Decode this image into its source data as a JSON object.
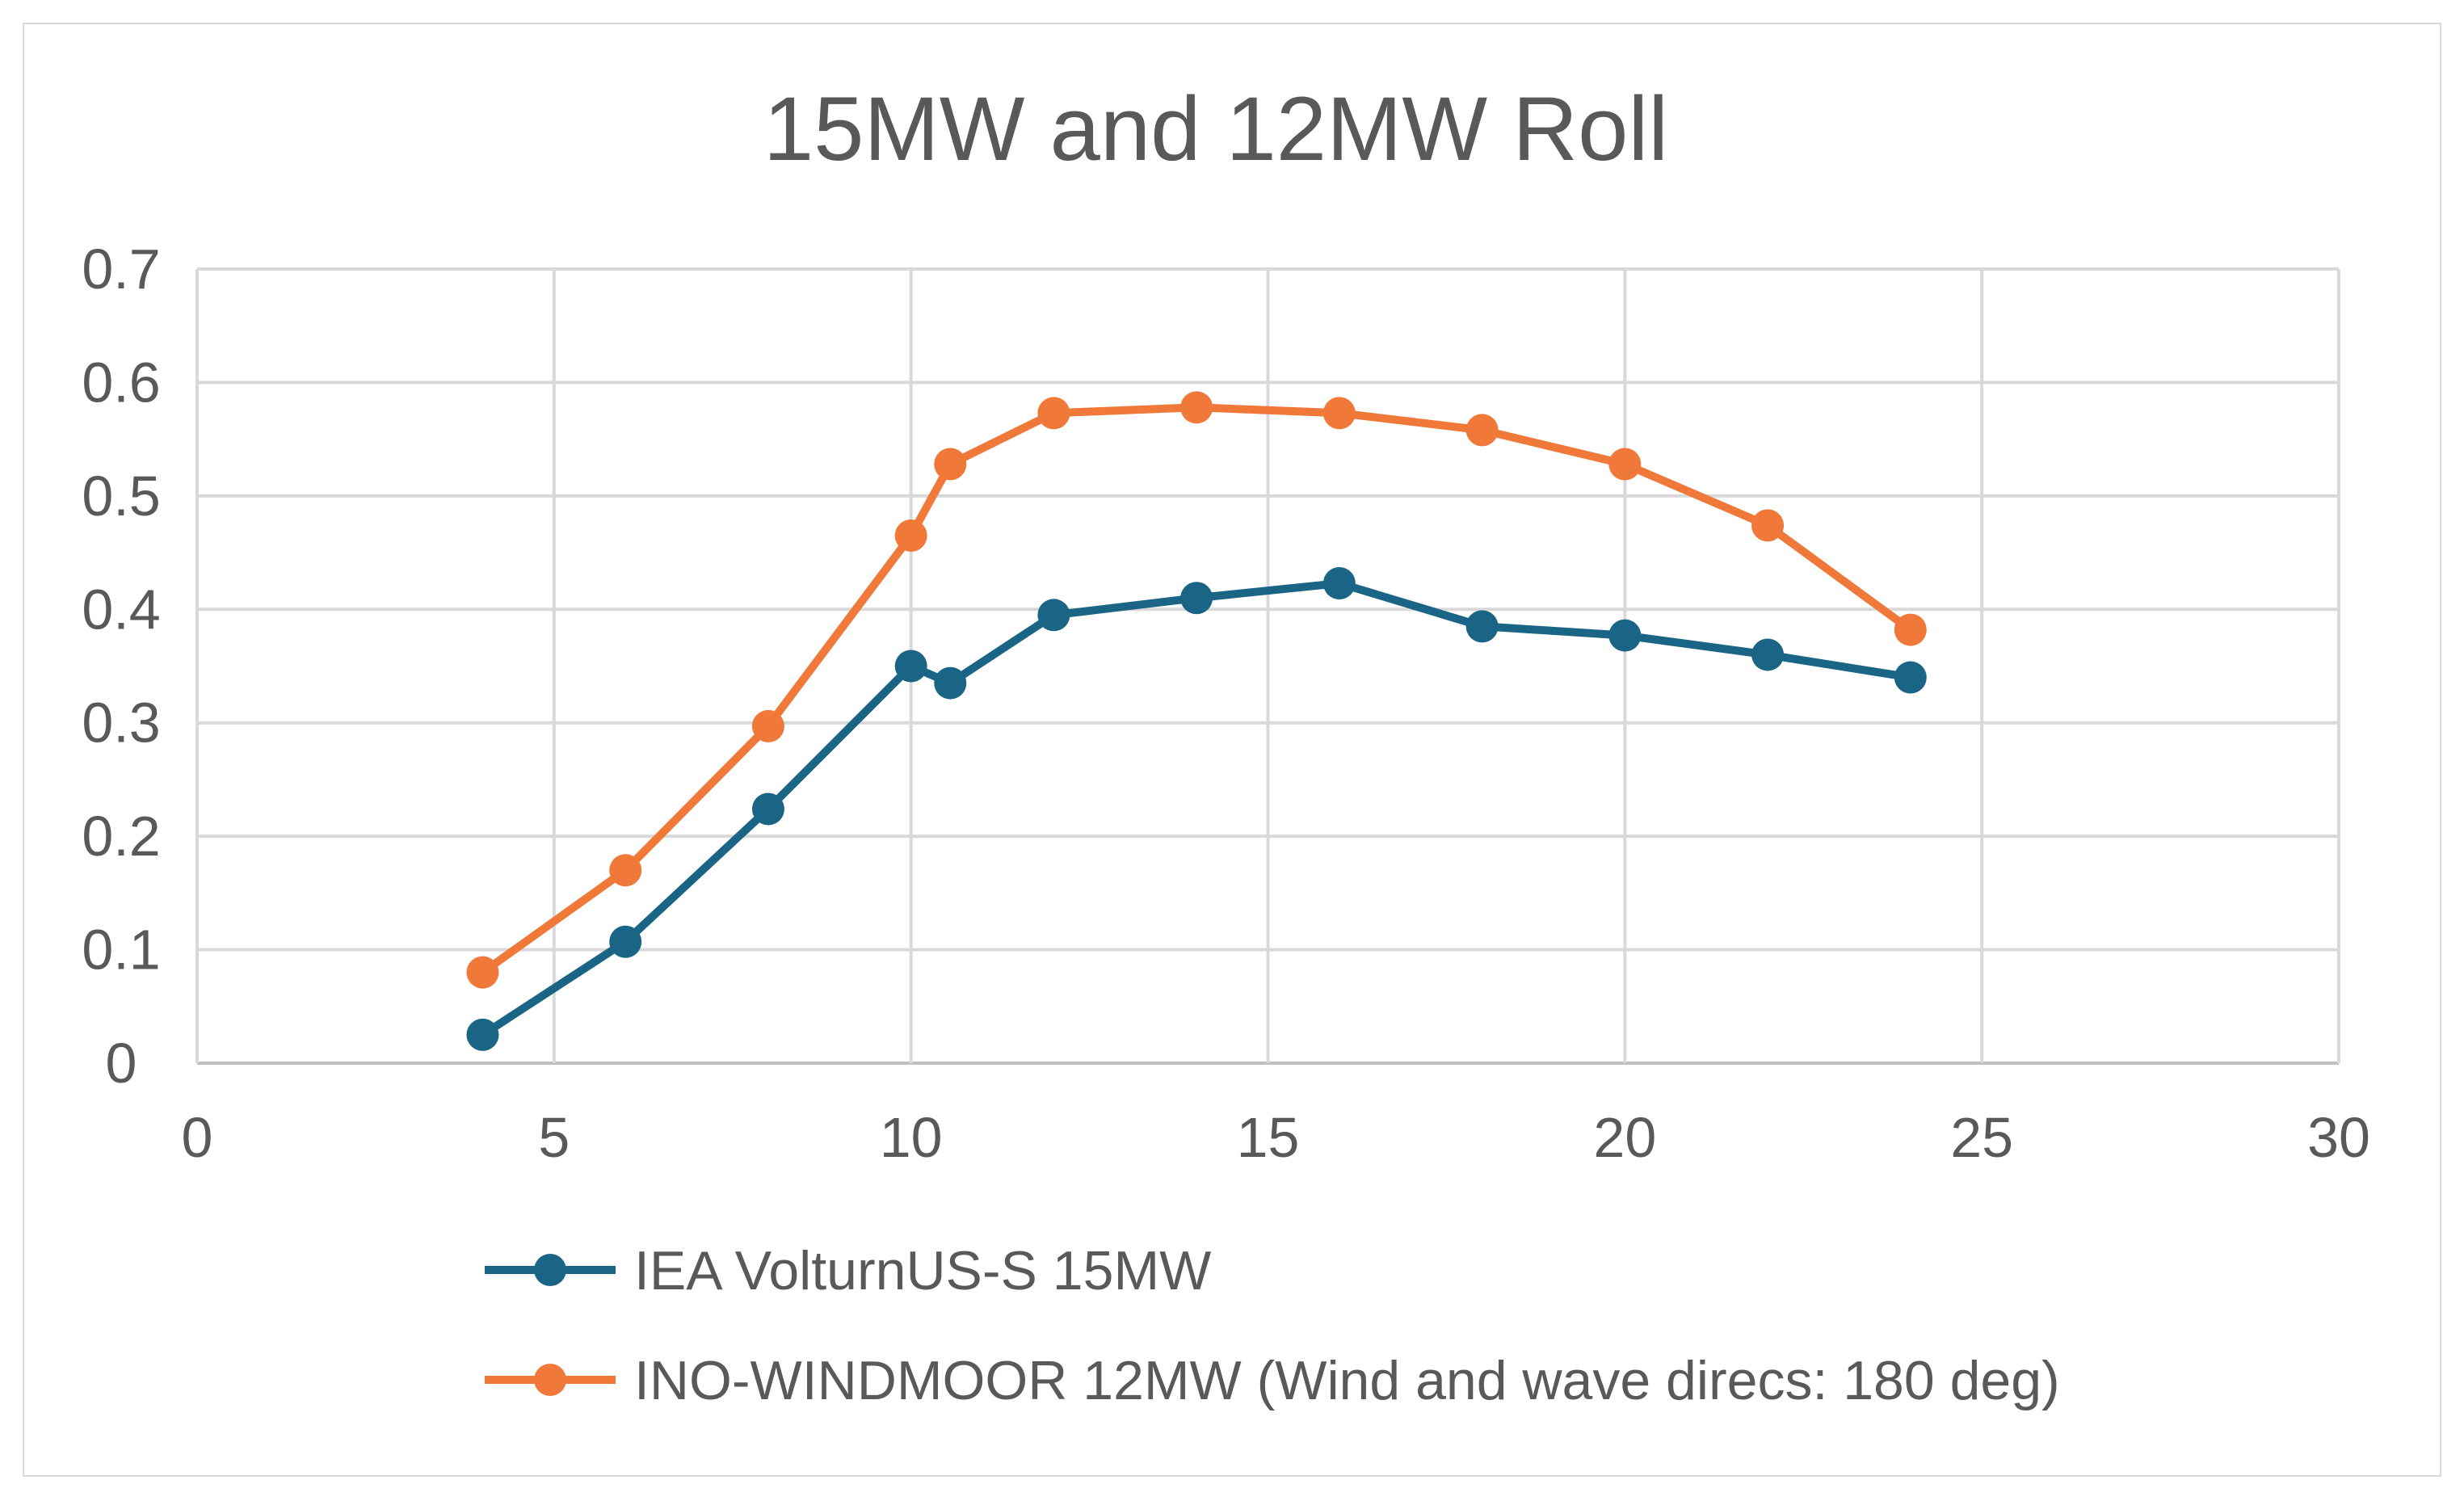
{
  "chart_data": {
    "type": "line",
    "title": "15MW and 12MW Roll",
    "xlabel": "",
    "ylabel": "",
    "xlim": [
      0,
      30
    ],
    "ylim": [
      0,
      0.7
    ],
    "xticks": [
      0,
      5,
      10,
      15,
      20,
      25,
      30
    ],
    "xtick_labels": [
      "0",
      "5",
      "10",
      "15",
      "20",
      "25",
      "30"
    ],
    "yticks": [
      0,
      0.1,
      0.2,
      0.3,
      0.4,
      0.5,
      0.6,
      0.7
    ],
    "ytick_labels": [
      "0",
      "0.1",
      "0.2",
      "0.3",
      "0.4",
      "0.5",
      "0.6",
      "0.7"
    ],
    "grid": true,
    "legend_position": "bottom",
    "series": [
      {
        "name": "IEA VolturnUS-S 15MW",
        "color": "#1a6586",
        "x": [
          4,
          6,
          8,
          10,
          10.55,
          12,
          14,
          16,
          18,
          20,
          22,
          24
        ],
        "y": [
          0.025,
          0.107,
          0.224,
          0.35,
          0.335,
          0.395,
          0.41,
          0.423,
          0.385,
          0.377,
          0.36,
          0.34
        ]
      },
      {
        "name": "INO-WINDMOOR 12MW (Wind and wave direcs: 180 deg)",
        "color": "#f0793a",
        "x": [
          4,
          6,
          8,
          10,
          10.55,
          12,
          14,
          16,
          18,
          20,
          22,
          24
        ],
        "y": [
          0.08,
          0.17,
          0.297,
          0.465,
          0.528,
          0.573,
          0.578,
          0.573,
          0.558,
          0.528,
          0.474,
          0.382
        ]
      }
    ]
  }
}
